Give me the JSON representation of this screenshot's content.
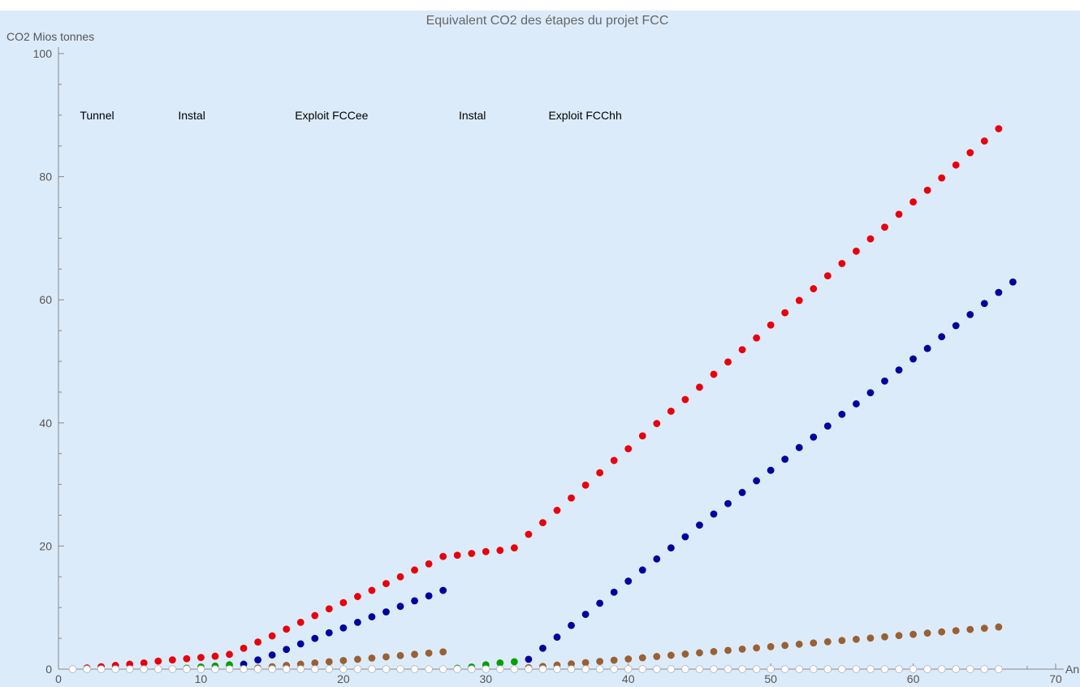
{
  "chart_data": {
    "type": "scatter",
    "title": "Equivalent CO2 des étapes du projet FCC",
    "ylabel": "CO2 Mios tonnes",
    "xlabel": "An",
    "xlim": [
      0,
      70
    ],
    "ylim": [
      0,
      100
    ],
    "xticks": [
      0,
      10,
      20,
      30,
      40,
      50,
      60,
      70
    ],
    "yticks": [
      0,
      20,
      40,
      60,
      80,
      100
    ],
    "grid": false,
    "background": "#dcebfa",
    "annotations": [
      {
        "text": "Tunnel",
        "x": 1.5,
        "y": 90
      },
      {
        "text": "Instal",
        "x": 8.4,
        "y": 90
      },
      {
        "text": "Exploit FCCee",
        "x": 16.6,
        "y": 90
      },
      {
        "text": "Instal",
        "x": 28.1,
        "y": 90
      },
      {
        "text": "Exploit FCChh",
        "x": 34.4,
        "y": 90
      }
    ],
    "series": [
      {
        "color": "#e8000b",
        "x": [
          2,
          3,
          4,
          5,
          6,
          7,
          8,
          9,
          10,
          11,
          12,
          13,
          14,
          15,
          16,
          17,
          18,
          19,
          20,
          21,
          22,
          23,
          24,
          25,
          26,
          27,
          28,
          29,
          30,
          31,
          32,
          33,
          34,
          35,
          36,
          37,
          38,
          39,
          40,
          41,
          42,
          43,
          44,
          45,
          46,
          47,
          48,
          49,
          50,
          51,
          52,
          53,
          54,
          55,
          56,
          57,
          58,
          59,
          60,
          61,
          62,
          63,
          64,
          65,
          66
        ],
        "y": [
          0.2,
          0.4,
          0.6,
          0.8,
          1.0,
          1.3,
          1.5,
          1.7,
          1.9,
          2.1,
          2.4,
          3.4,
          4.4,
          5.4,
          6.5,
          7.6,
          8.7,
          9.8,
          10.8,
          11.8,
          12.8,
          13.9,
          15.0,
          16.1,
          17.1,
          18.3,
          18.5,
          18.8,
          19.1,
          19.3,
          19.7,
          21.9,
          23.8,
          25.8,
          27.8,
          29.9,
          31.9,
          33.9,
          35.8,
          37.9,
          39.9,
          41.9,
          43.8,
          45.8,
          47.9,
          49.9,
          51.9,
          53.8,
          55.9,
          57.9,
          59.9,
          61.8,
          63.9,
          65.9,
          67.9,
          69.9,
          71.8,
          73.9,
          75.9,
          77.8,
          79.8,
          81.9,
          83.9,
          85.8,
          87.8
        ]
      },
      {
        "color": "#00009e",
        "x": [
          13,
          14,
          15,
          16,
          17,
          18,
          19,
          20,
          21,
          22,
          23,
          24,
          25,
          26,
          27,
          33,
          34,
          35,
          36,
          37,
          38,
          39,
          40,
          41,
          42,
          43,
          44,
          45,
          46,
          47,
          48,
          49,
          50,
          51,
          52,
          53,
          54,
          55,
          56,
          57,
          58,
          59,
          60,
          61,
          62,
          63,
          64,
          65,
          66,
          67
        ],
        "y": [
          0.8,
          1.5,
          2.3,
          3.2,
          4.1,
          5.0,
          5.9,
          6.7,
          7.6,
          8.5,
          9.3,
          10.2,
          11.1,
          11.9,
          12.8,
          1.6,
          3.4,
          5.2,
          7.1,
          8.9,
          10.7,
          12.5,
          14.3,
          16.1,
          17.9,
          19.7,
          21.5,
          23.4,
          25.2,
          26.9,
          28.7,
          30.6,
          32.3,
          34.1,
          36.0,
          37.7,
          39.5,
          41.4,
          43.1,
          44.9,
          46.8,
          48.6,
          50.4,
          52.1,
          54.0,
          55.8,
          57.6,
          59.4,
          61.2,
          62.9
        ]
      },
      {
        "color": "#00a000",
        "x": [
          9,
          10,
          11,
          12,
          28,
          29,
          30,
          31,
          32
        ],
        "y": [
          0.15,
          0.35,
          0.5,
          0.7,
          0.15,
          0.35,
          0.7,
          1.0,
          1.2
        ]
      },
      {
        "color": "#9a6032",
        "x": [
          13,
          14,
          15,
          16,
          17,
          18,
          19,
          20,
          21,
          22,
          23,
          24,
          25,
          26,
          27,
          33,
          34,
          35,
          36,
          37,
          38,
          39,
          40,
          41,
          42,
          43,
          44,
          45,
          46,
          47,
          48,
          49,
          50,
          51,
          52,
          53,
          54,
          55,
          56,
          57,
          58,
          59,
          60,
          61,
          62,
          63,
          64,
          65,
          66
        ],
        "y": [
          0.1,
          0.2,
          0.4,
          0.6,
          0.8,
          1.0,
          1.2,
          1.4,
          1.6,
          1.8,
          2.0,
          2.2,
          2.4,
          2.6,
          2.8,
          0.25,
          0.45,
          0.65,
          0.85,
          1.05,
          1.25,
          1.45,
          1.65,
          1.85,
          2.05,
          2.25,
          2.45,
          2.65,
          2.85,
          3.05,
          3.25,
          3.45,
          3.65,
          3.85,
          4.05,
          4.25,
          4.45,
          4.65,
          4.85,
          5.05,
          5.25,
          5.45,
          5.65,
          5.85,
          6.05,
          6.25,
          6.45,
          6.65,
          6.85
        ]
      },
      {
        "color": "#ffffff",
        "stroke": "#b0b0b0",
        "x": [
          1,
          2,
          3,
          4,
          5,
          6,
          7,
          8,
          9,
          10,
          11,
          12,
          13,
          14,
          15,
          16,
          17,
          18,
          19,
          20,
          21,
          22,
          23,
          24,
          25,
          26,
          27,
          28,
          29,
          30,
          31,
          32,
          33,
          34,
          35,
          36,
          37,
          38,
          39,
          40,
          41,
          42,
          43,
          44,
          45,
          46,
          47,
          48,
          49,
          50,
          51,
          52,
          53,
          54,
          55,
          56,
          57,
          58,
          59,
          60,
          61,
          62,
          63,
          64,
          65,
          66
        ],
        "y": [
          0,
          0,
          0,
          0,
          0,
          0,
          0,
          0,
          0,
          0,
          0,
          0,
          0,
          0,
          0,
          0,
          0,
          0,
          0,
          0,
          0,
          0,
          0,
          0,
          0,
          0,
          0,
          0,
          0,
          0,
          0,
          0,
          0,
          0,
          0,
          0,
          0,
          0,
          0,
          0,
          0,
          0,
          0,
          0,
          0,
          0,
          0,
          0,
          0,
          0,
          0,
          0,
          0,
          0,
          0,
          0,
          0,
          0,
          0,
          0,
          0,
          0,
          0,
          0,
          0,
          0
        ]
      }
    ]
  }
}
